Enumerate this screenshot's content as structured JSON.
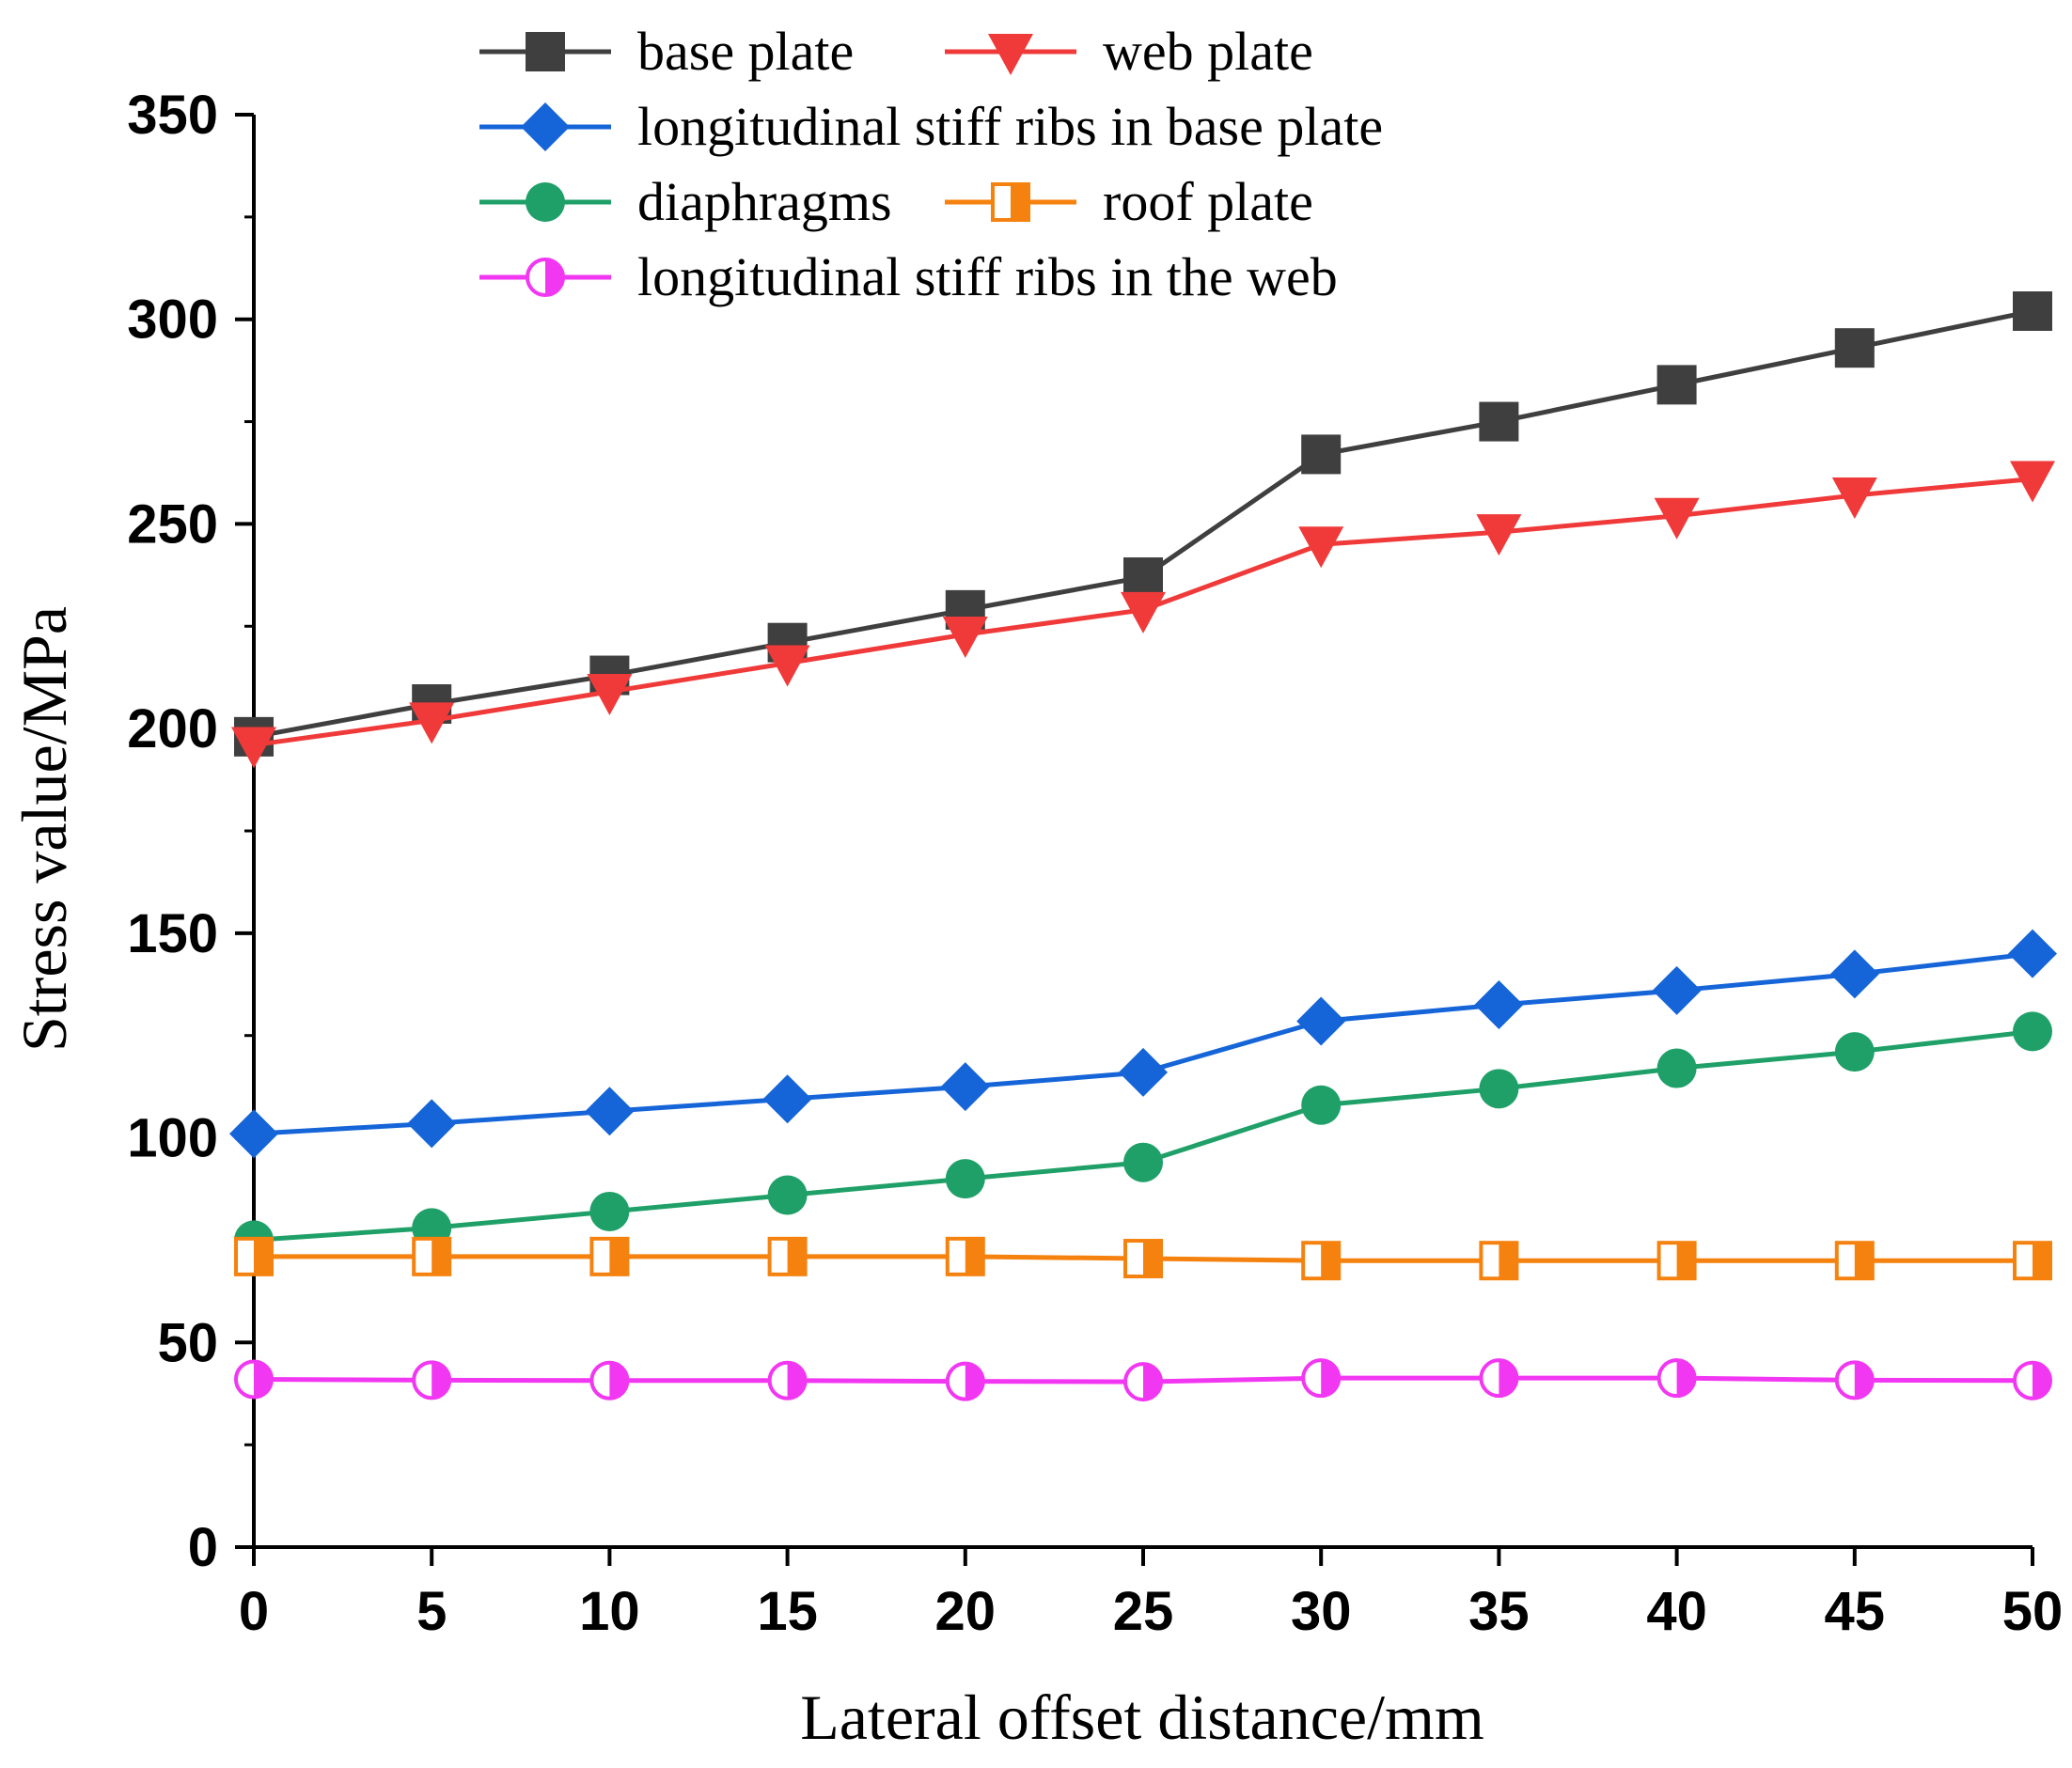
{
  "chart_data": {
    "type": "line",
    "title": "",
    "xlabel": "Lateral offset distance/mm",
    "ylabel": "Stress value/MPa",
    "x": [
      0,
      5,
      10,
      15,
      20,
      25,
      30,
      35,
      40,
      45,
      50
    ],
    "xlim": [
      0,
      50
    ],
    "ylim": [
      0,
      350
    ],
    "xticks": [
      "0",
      "5",
      "10",
      "15",
      "20",
      "25",
      "30",
      "35",
      "40",
      "45",
      "50"
    ],
    "yticks": [
      "0",
      "50",
      "100",
      "150",
      "200",
      "250",
      "300",
      "350"
    ],
    "grid": false,
    "legend_position": "top",
    "series": [
      {
        "name": "base plate",
        "color": "#3f3f3f",
        "marker": "square-filled",
        "values": [
          198,
          206,
          213,
          221,
          229,
          237,
          267,
          275,
          284,
          293,
          302
        ]
      },
      {
        "name": "web plate",
        "color": "#f03a3a",
        "marker": "triangle-down",
        "values": [
          196,
          202,
          209,
          216,
          223,
          229,
          245,
          248,
          252,
          257,
          261
        ]
      },
      {
        "name": "longitudinal stiff ribs in base plate",
        "color": "#1565d8",
        "marker": "diamond",
        "values": [
          101,
          103.5,
          106.5,
          109.5,
          112.5,
          116,
          128.5,
          132.5,
          136,
          140,
          145
        ]
      },
      {
        "name": "diaphragms",
        "color": "#1fa068",
        "marker": "circle-filled",
        "values": [
          75,
          78,
          82,
          86,
          90,
          94,
          108,
          112,
          117,
          121,
          126
        ]
      },
      {
        "name": "roof plate",
        "color": "#f5820f",
        "marker": "square-half",
        "values": [
          71,
          71,
          71,
          71,
          71,
          70.5,
          70,
          70,
          70,
          70,
          70
        ]
      },
      {
        "name": "longitudinal stiff ribs in the web",
        "color": "#f237f2",
        "marker": "circle-half",
        "values": [
          41,
          40.8,
          40.7,
          40.7,
          40.5,
          40.4,
          41.3,
          41.3,
          41.3,
          40.8,
          40.7
        ]
      }
    ]
  }
}
